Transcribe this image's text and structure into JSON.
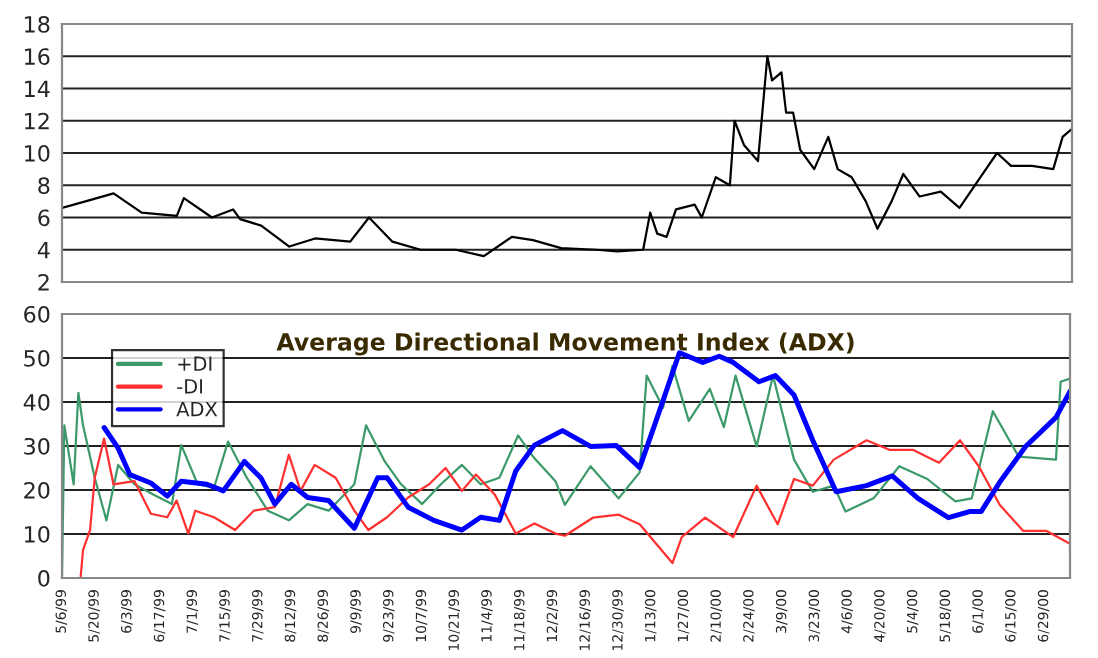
{
  "chart_data": [
    {
      "type": "line",
      "xlim": [
        "1999-05-06",
        "2000-07-10"
      ],
      "ylim": [
        2,
        18
      ],
      "yticks": [
        2,
        4,
        6,
        8,
        10,
        12,
        14,
        16,
        18
      ],
      "grid": "y",
      "tick_labels": "y",
      "xticks": [
        {
          "value": "1999-05-06",
          "label": null
        },
        {
          "value": "1999-05-20",
          "label": null
        },
        {
          "value": "1999-06-03",
          "label": null
        },
        {
          "value": "1999-06-17",
          "label": null
        },
        {
          "value": "1999-07-01",
          "label": null
        },
        {
          "value": "1999-07-15",
          "label": null
        },
        {
          "value": "1999-07-29",
          "label": null
        },
        {
          "value": "1999-08-12",
          "label": null
        },
        {
          "value": "1999-08-26",
          "label": null
        },
        {
          "value": "1999-09-09",
          "label": null
        },
        {
          "value": "1999-09-23",
          "label": null
        },
        {
          "value": "1999-10-07",
          "label": null
        },
        {
          "value": "1999-10-21",
          "label": null
        },
        {
          "value": "1999-11-04",
          "label": null
        },
        {
          "value": "1999-11-18",
          "label": null
        },
        {
          "value": "1999-12-02",
          "label": null
        },
        {
          "value": "1999-12-16",
          "label": null
        },
        {
          "value": "1999-12-30",
          "label": null
        },
        {
          "value": "2000-01-13",
          "label": null
        },
        {
          "value": "2000-01-27",
          "label": null
        },
        {
          "value": "2000-02-10",
          "label": null
        },
        {
          "value": "2000-02-24",
          "label": null
        },
        {
          "value": "2000-03-09",
          "label": null
        },
        {
          "value": "2000-03-23",
          "label": null
        },
        {
          "value": "2000-04-06",
          "label": null
        },
        {
          "value": "2000-04-20",
          "label": null
        },
        {
          "value": "2000-05-04",
          "label": null
        },
        {
          "value": "2000-05-18",
          "label": null
        },
        {
          "value": "2000-06-01",
          "label": null
        },
        {
          "value": "2000-06-15",
          "label": null
        },
        {
          "value": "2000-06-29",
          "label": null
        }
      ],
      "series": [
        {
          "color": "#000000",
          "x": [
            "1999-05-06",
            "1999-05-16",
            "1999-05-28",
            "1999-06-09",
            "1999-06-24",
            "1999-06-27",
            "1999-07-09",
            "1999-07-18",
            "1999-07-21",
            "1999-07-30",
            "1999-08-11",
            "1999-08-22",
            "1999-09-06",
            "1999-09-14",
            "1999-09-24",
            "1999-10-06",
            "1999-10-21",
            "1999-11-02",
            "1999-11-14",
            "1999-11-23",
            "1999-12-05",
            "1999-12-20",
            "1999-12-29",
            "2000-01-09",
            "2000-01-12",
            "2000-01-15",
            "2000-01-19",
            "2000-01-23",
            "2000-01-31",
            "2000-02-03",
            "2000-02-09",
            "2000-02-15",
            "2000-02-17",
            "2000-02-21",
            "2000-02-27",
            "2000-03-02",
            "2000-03-04",
            "2000-03-08",
            "2000-03-10",
            "2000-03-13",
            "2000-03-16",
            "2000-03-22",
            "2000-03-28",
            "2000-04-01",
            "2000-04-07",
            "2000-04-13",
            "2000-04-18",
            "2000-04-24",
            "2000-04-29",
            "2000-05-06",
            "2000-05-15",
            "2000-05-23",
            "2000-05-31",
            "2000-06-08",
            "2000-06-14",
            "2000-06-23",
            "2000-07-02",
            "2000-07-06",
            "2000-07-10"
          ],
          "values": [
            6.6,
            7.0,
            7.5,
            6.3,
            6.1,
            7.2,
            6.0,
            6.5,
            5.9,
            5.5,
            4.2,
            4.7,
            4.5,
            6.0,
            4.5,
            4.0,
            4.0,
            3.6,
            4.8,
            4.6,
            4.1,
            4.0,
            3.9,
            4.0,
            6.3,
            5.0,
            4.8,
            6.5,
            6.8,
            6.0,
            8.5,
            8.0,
            12.0,
            10.5,
            9.5,
            16.0,
            14.5,
            15.0,
            12.5,
            12.5,
            10.2,
            9.0,
            11.0,
            9.0,
            8.5,
            7.0,
            5.3,
            7.0,
            8.7,
            7.3,
            7.6,
            6.6,
            8.3,
            10.0,
            9.2,
            9.2,
            9.0,
            11.0,
            11.5
          ]
        }
      ]
    },
    {
      "type": "line",
      "title": "Average Directional Movement Index (ADX)",
      "xlim": [
        "1999-05-06",
        "2000-07-10"
      ],
      "ylim": [
        0,
        60
      ],
      "yticks": [
        0,
        10,
        20,
        30,
        40,
        50,
        60
      ],
      "grid": "y",
      "legend": "top left",
      "xticks": [
        {
          "value": "1999-05-06",
          "label": "5/6/99"
        },
        {
          "value": "1999-05-20",
          "label": "5/20/99"
        },
        {
          "value": "1999-06-03",
          "label": "6/3/99"
        },
        {
          "value": "1999-06-17",
          "label": "6/17/99"
        },
        {
          "value": "1999-07-01",
          "label": "7/1/99"
        },
        {
          "value": "1999-07-15",
          "label": "7/15/99"
        },
        {
          "value": "1999-07-29",
          "label": "7/29/99"
        },
        {
          "value": "1999-08-12",
          "label": "8/12/99"
        },
        {
          "value": "1999-08-26",
          "label": "8/26/99"
        },
        {
          "value": "1999-09-09",
          "label": "9/9/99"
        },
        {
          "value": "1999-09-23",
          "label": "9/23/99"
        },
        {
          "value": "1999-10-07",
          "label": "10/7/99"
        },
        {
          "value": "1999-10-21",
          "label": "10/21/99"
        },
        {
          "value": "1999-11-04",
          "label": "11/4/99"
        },
        {
          "value": "1999-11-18",
          "label": "11/18/99"
        },
        {
          "value": "1999-12-02",
          "label": "12/2/99"
        },
        {
          "value": "1999-12-16",
          "label": "12/16/99"
        },
        {
          "value": "1999-12-30",
          "label": "12/30/99"
        },
        {
          "value": "2000-01-13",
          "label": "1/13/00"
        },
        {
          "value": "2000-01-27",
          "label": "1/27/00"
        },
        {
          "value": "2000-02-10",
          "label": "2/10/00"
        },
        {
          "value": "2000-02-24",
          "label": "2/24/00"
        },
        {
          "value": "2000-03-09",
          "label": "3/9/00"
        },
        {
          "value": "2000-03-23",
          "label": "3/23/00"
        },
        {
          "value": "2000-04-06",
          "label": "4/6/00"
        },
        {
          "value": "2000-04-20",
          "label": "4/20/00"
        },
        {
          "value": "2000-05-04",
          "label": "5/4/00"
        },
        {
          "value": "2000-05-18",
          "label": "5/18/00"
        },
        {
          "value": "2000-06-01",
          "label": "6/1/00"
        },
        {
          "value": "2000-06-15",
          "label": "6/15/00"
        },
        {
          "value": "2000-06-29",
          "label": "6/29/00"
        }
      ],
      "series": [
        {
          "name": "+DI",
          "color": "#3c9a6a",
          "x": [
            "1999-05-06",
            "1999-05-07",
            "1999-05-11",
            "1999-05-13",
            "1999-05-15",
            "1999-05-20",
            "1999-05-25",
            "1999-05-30",
            "1999-06-06",
            "1999-06-14",
            "1999-06-22",
            "1999-06-26",
            "1999-07-03",
            "1999-07-10",
            "1999-07-16",
            "1999-07-24",
            "1999-08-02",
            "1999-08-11",
            "1999-08-19",
            "1999-08-28",
            "1999-09-08",
            "1999-09-13",
            "1999-09-21",
            "1999-09-28",
            "1999-10-07",
            "1999-10-15",
            "1999-10-24",
            "1999-11-01",
            "1999-11-09",
            "1999-11-17",
            "1999-11-24",
            "1999-12-03",
            "1999-12-07",
            "1999-12-18",
            "1999-12-30",
            "2000-01-08",
            "2000-01-11",
            "2000-01-18",
            "2000-01-22",
            "2000-01-29",
            "2000-02-07",
            "2000-02-13",
            "2000-02-18",
            "2000-02-27",
            "2000-03-05",
            "2000-03-14",
            "2000-03-22",
            "2000-03-31",
            "2000-04-05",
            "2000-04-17",
            "2000-04-28",
            "2000-05-10",
            "2000-05-22",
            "2000-05-29",
            "2000-06-07",
            "2000-06-18",
            "2000-07-04",
            "2000-07-06",
            "2000-07-10"
          ],
          "values": [
            0.4,
            34.7,
            21.3,
            42.1,
            34.7,
            22.8,
            13.1,
            25.7,
            21.3,
            19,
            16.8,
            30.2,
            21.3,
            20.5,
            31,
            22.8,
            15.3,
            13.1,
            16.8,
            15.3,
            21.3,
            34.7,
            26.5,
            21.3,
            16.8,
            21.3,
            25.7,
            21.3,
            22.8,
            32.4,
            27.2,
            22,
            16.6,
            25.4,
            18.1,
            24,
            46,
            38.7,
            48.2,
            35.7,
            43,
            34.3,
            46,
            29.9,
            46,
            26.9,
            19.6,
            21,
            15.1,
            18.1,
            25.4,
            22.5,
            17.4,
            18.1,
            37.9,
            27.6,
            26.9,
            44.6,
            45.3
          ]
        },
        {
          "name": "-DI",
          "color": "#ff3030",
          "x": [
            "1999-05-14",
            "1999-05-15",
            "1999-05-18",
            "1999-05-20",
            "1999-05-24",
            "1999-05-28",
            "1999-06-06",
            "1999-06-13",
            "1999-06-20",
            "1999-06-24",
            "1999-06-29",
            "1999-07-02",
            "1999-07-10",
            "1999-07-19",
            "1999-07-27",
            "1999-08-05",
            "1999-08-11",
            "1999-08-16",
            "1999-08-22",
            "1999-08-31",
            "1999-09-08",
            "1999-09-14",
            "1999-09-22",
            "1999-10-01",
            "1999-10-10",
            "1999-10-17",
            "1999-10-24",
            "1999-10-30",
            "1999-11-07",
            "1999-11-16",
            "1999-11-24",
            "1999-12-03",
            "1999-12-07",
            "1999-12-19",
            "1999-12-30",
            "2000-01-08",
            "2000-01-22",
            "2000-01-26",
            "2000-02-05",
            "2000-02-17",
            "2000-02-27",
            "2000-03-07",
            "2000-03-14",
            "2000-03-22",
            "2000-03-31",
            "2000-04-14",
            "2000-04-24",
            "2000-05-04",
            "2000-05-15",
            "2000-05-24",
            "2000-06-01",
            "2000-06-10",
            "2000-06-20",
            "2000-06-30",
            "2000-07-10"
          ],
          "values": [
            0.4,
            6.4,
            10.9,
            22.8,
            31.7,
            21.3,
            22,
            14.6,
            13.8,
            17.6,
            10.1,
            15.3,
            13.8,
            10.9,
            15.3,
            16.1,
            28,
            19.8,
            25.7,
            22.8,
            15.3,
            10.9,
            13.8,
            18.3,
            21.3,
            25,
            19.8,
            23.5,
            19,
            10.1,
            12.4,
            10.1,
            9.6,
            13.7,
            14.4,
            12.2,
            3.4,
            9.3,
            13.7,
            9.3,
            21,
            12.2,
            22.5,
            21,
            26.9,
            31.3,
            29.1,
            29.1,
            26.2,
            31.3,
            25.4,
            16.6,
            10.7,
            10.7,
            7.8
          ]
        },
        {
          "name": "ADX",
          "color": "#0000ff",
          "x": [
            "1999-05-24",
            "1999-05-30",
            "1999-06-04",
            "1999-06-13",
            "1999-06-20",
            "1999-06-26",
            "1999-07-07",
            "1999-07-14",
            "1999-07-23",
            "1999-07-30",
            "1999-08-05",
            "1999-08-12",
            "1999-08-19",
            "1999-08-28",
            "1999-09-08",
            "1999-09-18",
            "1999-09-22",
            "1999-10-01",
            "1999-10-12",
            "1999-10-24",
            "1999-11-01",
            "1999-11-09",
            "1999-11-16",
            "1999-11-24",
            "1999-12-06",
            "1999-12-18",
            "1999-12-29",
            "2000-01-08",
            "2000-01-15",
            "2000-01-25",
            "2000-02-04",
            "2000-02-11",
            "2000-02-17",
            "2000-02-28",
            "2000-03-06",
            "2000-03-14",
            "2000-03-22",
            "2000-04-01",
            "2000-04-14",
            "2000-04-25",
            "2000-05-06",
            "2000-05-19",
            "2000-05-28",
            "2000-06-02",
            "2000-06-10",
            "2000-06-21",
            "2000-07-04",
            "2000-07-10"
          ],
          "values": [
            34.2,
            29.5,
            23.5,
            21.6,
            18.6,
            22,
            21.3,
            19.8,
            26.5,
            22.8,
            16.8,
            21.3,
            18.3,
            17.6,
            11.3,
            22.8,
            22.8,
            16.1,
            13.1,
            10.9,
            13.8,
            13.1,
            24.3,
            30.2,
            33.5,
            29.9,
            30.1,
            25.1,
            35.7,
            51.2,
            49,
            50.4,
            49,
            44.6,
            46,
            41.6,
            31.3,
            19.6,
            21,
            23.2,
            18.1,
            13.7,
            15.1,
            15.1,
            21.8,
            29.9,
            36.5,
            42.4
          ]
        }
      ]
    }
  ]
}
